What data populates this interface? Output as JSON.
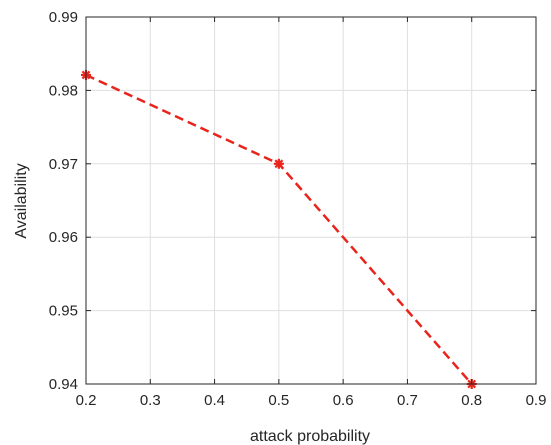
{
  "chart_data": {
    "type": "line",
    "title": "",
    "xlabel": "attack probability",
    "ylabel": "Availability",
    "xlim": [
      0.2,
      0.9
    ],
    "ylim": [
      0.94,
      0.99
    ],
    "x_ticks": [
      0.2,
      0.3,
      0.4,
      0.5,
      0.6,
      0.7,
      0.8,
      0.9
    ],
    "y_ticks": [
      0.94,
      0.95,
      0.96,
      0.97,
      0.98,
      0.99
    ],
    "x_tick_labels": [
      "0.2",
      "0.3",
      "0.4",
      "0.5",
      "0.6",
      "0.7",
      "0.8",
      "0.9"
    ],
    "y_tick_labels": [
      "0.94",
      "0.95",
      "0.96",
      "0.97",
      "0.98",
      "0.99"
    ],
    "grid": true,
    "legend": null,
    "series": [
      {
        "color": "#e8241c",
        "line_style": "dashed",
        "marker": "asterisk",
        "x": [
          0.2,
          0.5,
          0.8
        ],
        "y": [
          0.9821,
          0.97,
          0.94
        ]
      }
    ]
  }
}
